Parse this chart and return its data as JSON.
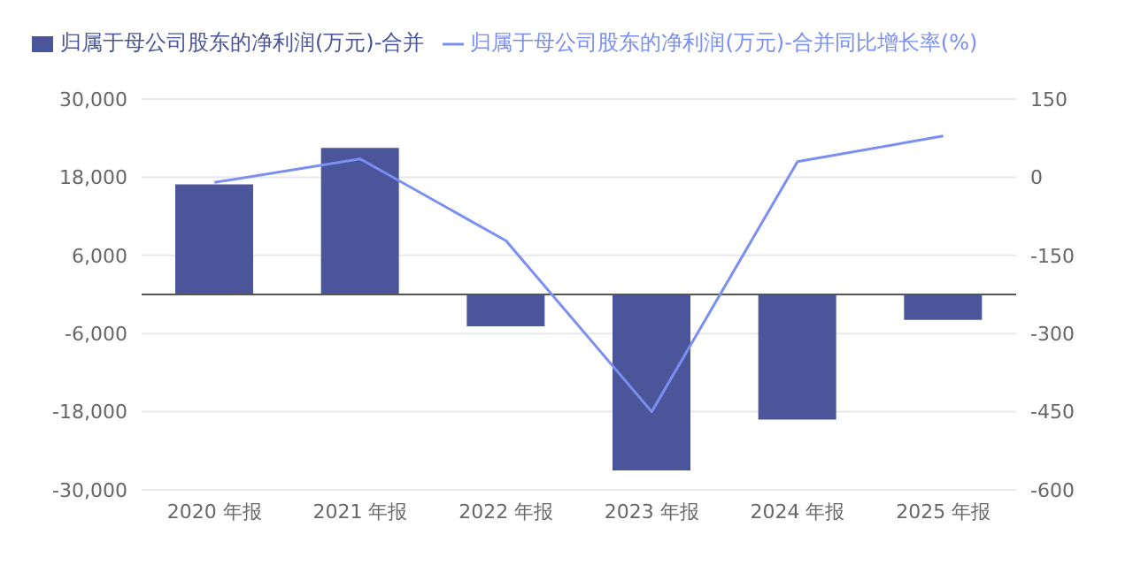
{
  "chart_data": {
    "type": "bar",
    "categories": [
      "2020 年报",
      "2021 年报",
      "2022 年报",
      "2023 年报",
      "2024 年报",
      "2025 年报"
    ],
    "series": [
      {
        "name": "归属于母公司股东的净利润(万元)-合并",
        "color": "#4a5699",
        "values": [
          16900,
          22500,
          -4900,
          -27000,
          -19200,
          -3900
        ]
      },
      {
        "name": "归属于母公司股东的净利润(万元)-合并同比增长率(%)",
        "type": "line",
        "axis": "y2",
        "color": "#7b8ff0",
        "values": [
          -10,
          35,
          -122,
          -450,
          30,
          79
        ]
      }
    ],
    "ylim": [
      -30000,
      30000
    ],
    "yticks": [
      {
        "value": -30000,
        "label": "-30,000"
      },
      {
        "value": -18000,
        "label": "-18,000"
      },
      {
        "value": -6000,
        "label": "-6,000"
      },
      {
        "value": 6000,
        "label": "6,000"
      },
      {
        "value": 18000,
        "label": "18,000"
      },
      {
        "value": 30000,
        "label": "30,000"
      }
    ],
    "y2lim": [
      -600,
      150
    ],
    "y2ticks": [
      -600,
      -450,
      -300,
      -150,
      0,
      150
    ],
    "grid": "y",
    "legend": "top left",
    "marker": "none",
    "line_style": "solid"
  }
}
